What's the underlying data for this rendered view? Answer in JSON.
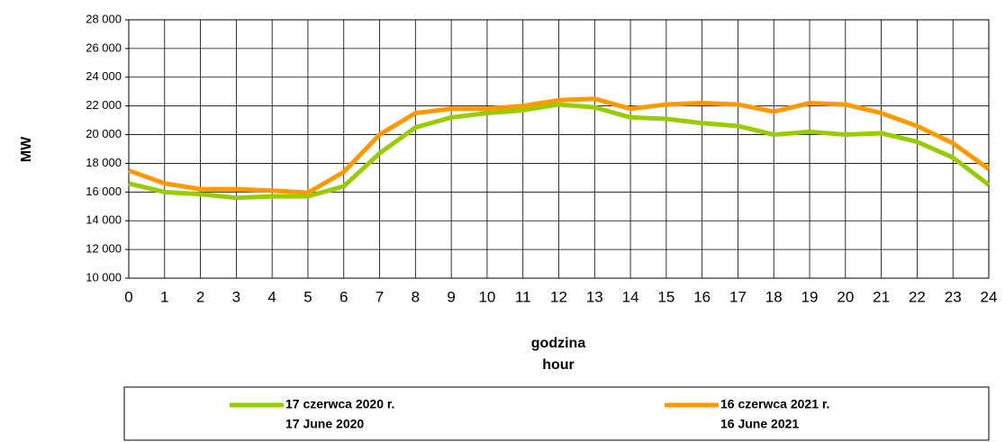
{
  "chart_data": {
    "type": "line",
    "x": [
      0,
      1,
      2,
      3,
      4,
      5,
      6,
      7,
      8,
      9,
      10,
      11,
      12,
      13,
      14,
      15,
      16,
      17,
      18,
      19,
      20,
      21,
      22,
      23,
      24
    ],
    "xlim": [
      0,
      24
    ],
    "xticks": [
      0,
      1,
      2,
      3,
      4,
      5,
      6,
      7,
      8,
      9,
      10,
      11,
      12,
      13,
      14,
      15,
      16,
      17,
      18,
      19,
      20,
      21,
      22,
      23,
      24
    ],
    "ylim": [
      10000,
      28000
    ],
    "yticks": [
      {
        "value": 10000,
        "label": "10 000"
      },
      {
        "value": 12000,
        "label": "12 000"
      },
      {
        "value": 14000,
        "label": "14 000"
      },
      {
        "value": 16000,
        "label": "16 000"
      },
      {
        "value": 18000,
        "label": "18 000"
      },
      {
        "value": 20000,
        "label": "20 000"
      },
      {
        "value": 22000,
        "label": "22 000"
      },
      {
        "value": 24000,
        "label": "24 000"
      },
      {
        "value": 26000,
        "label": "26 000"
      },
      {
        "value": 28000,
        "label": "28 000"
      }
    ],
    "ylabel": "MW",
    "xlabel": [
      "godzina",
      "hour"
    ],
    "grid": true,
    "series": [
      {
        "name": [
          "17 czerwca  2020 r.",
          "17 June 2020"
        ],
        "color": "#99cc00",
        "values": [
          16600,
          16000,
          15850,
          15600,
          15700,
          15700,
          16400,
          18700,
          20500,
          21200,
          21500,
          21700,
          22100,
          21900,
          21200,
          21100,
          20800,
          20600,
          20000,
          20200,
          20000,
          20100,
          19500,
          18400,
          16500
        ]
      },
      {
        "name": [
          "16 czerwca  2021 r.",
          "16 June  2021"
        ],
        "color": "#ff9900",
        "values": [
          17500,
          16600,
          16200,
          16200,
          16100,
          15950,
          17400,
          20000,
          21500,
          21800,
          21800,
          22000,
          22400,
          22500,
          21800,
          22100,
          22200,
          22100,
          21600,
          22200,
          22100,
          21500,
          20600,
          19400,
          17600
        ]
      }
    ]
  }
}
